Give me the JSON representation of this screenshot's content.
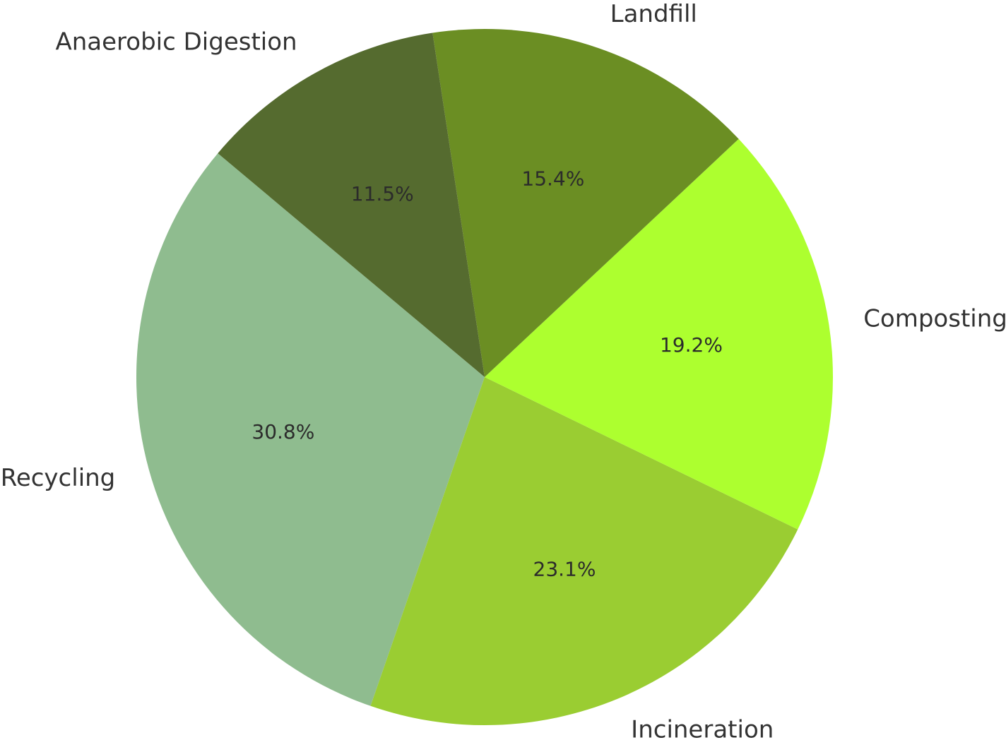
{
  "chart_data": {
    "type": "pie",
    "title": "",
    "start_angle_deg": 140,
    "direction": "counterclockwise",
    "categories": [
      "Recycling",
      "Incineration",
      "Composting",
      "Landfill",
      "Anaerobic Digestion"
    ],
    "values": [
      30.8,
      23.1,
      19.2,
      15.4,
      11.5
    ],
    "percent_labels": [
      "30.8%",
      "23.1%",
      "19.2%",
      "15.4%",
      "11.5%"
    ],
    "colors": [
      "#8fbc8f",
      "#9acd32",
      "#adff2f",
      "#6b8e23",
      "#556b2f"
    ],
    "legend": "none"
  }
}
